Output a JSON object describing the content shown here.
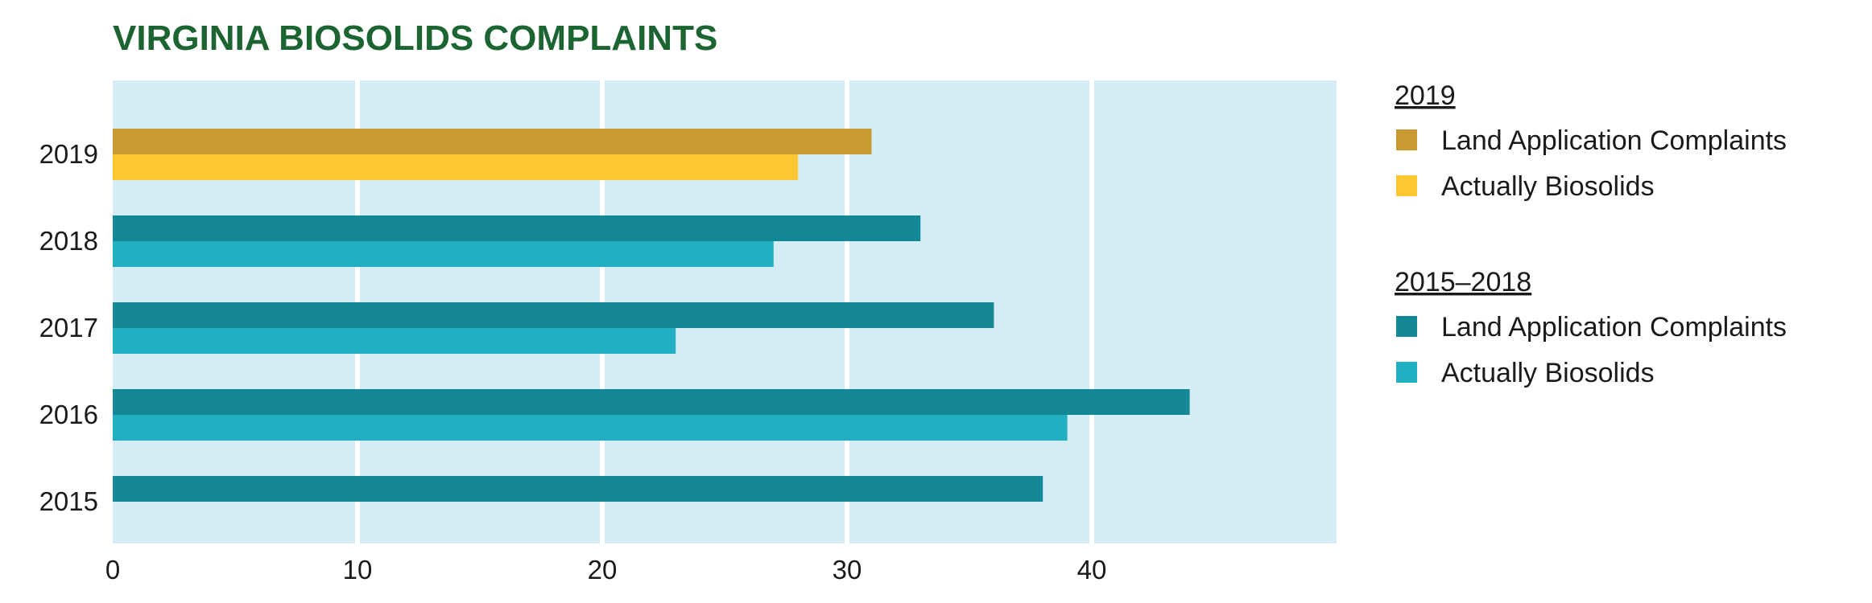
{
  "chart_data": {
    "type": "bar",
    "orientation": "horizontal",
    "title": "VIRGINIA BIOSOLIDS COMPLAINTS",
    "xlabel": "",
    "ylabel": "",
    "categories": [
      "2019",
      "2018",
      "2017",
      "2016",
      "2015"
    ],
    "x_ticks": [
      "0",
      "10",
      "20",
      "30",
      "40"
    ],
    "xlim": [
      0,
      50
    ],
    "grid": true,
    "legend_position": "right",
    "series": [
      {
        "name": "Land Application Complaints",
        "values": [
          31,
          33,
          36,
          44,
          38
        ]
      },
      {
        "name": "Actually Biosolids",
        "values": [
          28,
          27,
          23,
          39,
          null
        ]
      }
    ],
    "legend": [
      {
        "heading": "2019",
        "items": [
          {
            "label": "Land Application Complaints",
            "color": "#C89A2F"
          },
          {
            "label": "Actually Biosolids",
            "color": "#FEC630"
          }
        ]
      },
      {
        "heading": "2015–2018",
        "items": [
          {
            "label": "Land Application Complaints",
            "color": "#148896"
          },
          {
            "label": "Actually Biosolids",
            "color": "#20B0C2"
          }
        ]
      }
    ]
  },
  "colors": {
    "title": "#1C6532",
    "plot_background": "#D7EDF5",
    "gridline": "#FFFFFF",
    "highlight_primary": "#C89A2F",
    "highlight_secondary": "#FEC630",
    "default_primary": "#148896",
    "default_secondary": "#20B0C2"
  }
}
